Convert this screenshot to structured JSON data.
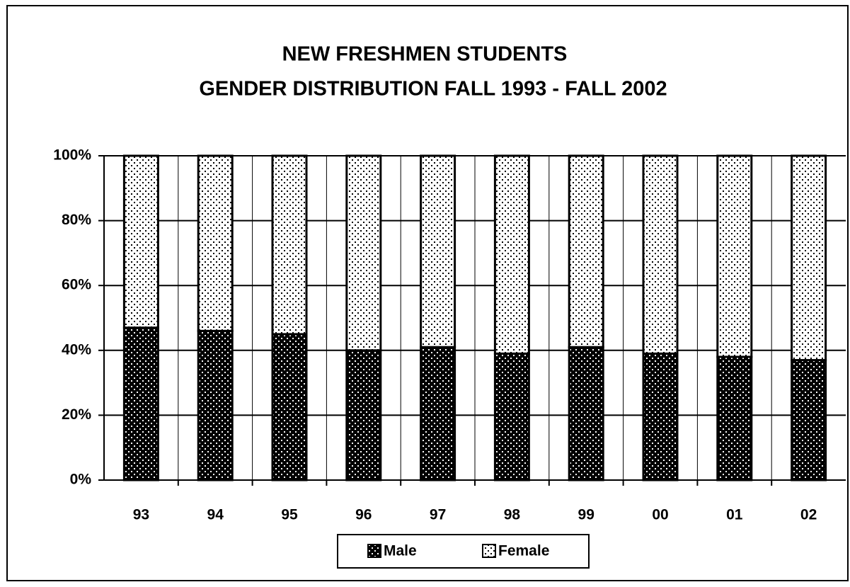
{
  "chart_data": {
    "type": "stacked_bar",
    "title": "NEW FRESHMEN STUDENTS",
    "subtitle": "GENDER DISTRIBUTION FALL 1993 - FALL 2002",
    "categories": [
      "93",
      "94",
      "95",
      "96",
      "97",
      "98",
      "99",
      "00",
      "01",
      "02"
    ],
    "series": [
      {
        "name": "Male",
        "color": "#000000",
        "values": [
          47,
          46,
          45,
          40,
          41,
          39,
          41,
          39,
          38,
          37
        ]
      },
      {
        "name": "Female",
        "color": "#ffffff",
        "values": [
          53,
          54,
          55,
          60,
          59,
          61,
          59,
          61,
          62,
          63
        ]
      }
    ],
    "ylim": [
      0,
      100
    ],
    "yticks": [
      {
        "value": 0,
        "label": "0%"
      },
      {
        "value": 20,
        "label": "20%"
      },
      {
        "value": 40,
        "label": "40%"
      },
      {
        "value": 60,
        "label": "60%"
      },
      {
        "value": 80,
        "label": "80%"
      },
      {
        "value": 100,
        "label": "100%"
      }
    ],
    "grid": true,
    "legend": "bottom"
  }
}
